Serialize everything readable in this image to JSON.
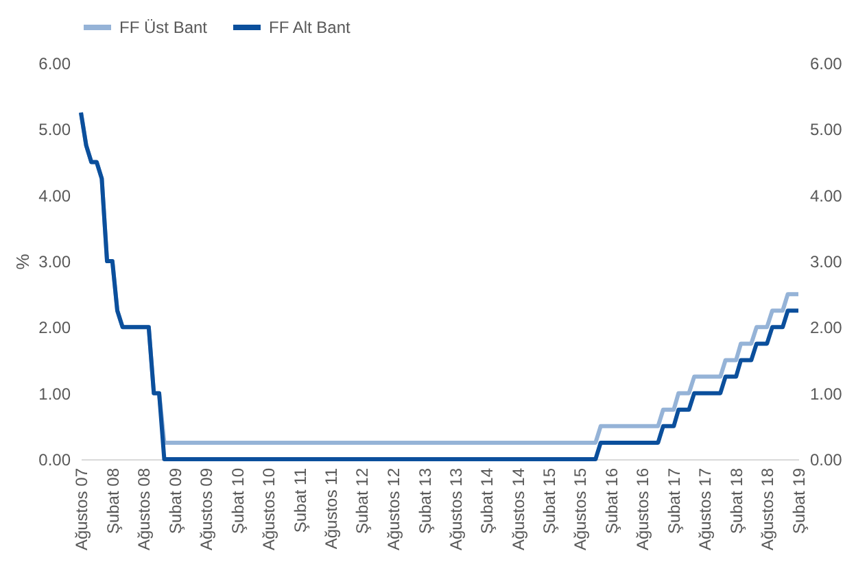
{
  "chart_data": {
    "type": "line",
    "ylabel": "%",
    "legend": "top",
    "grid": false,
    "xlim": [
      "2007-08",
      "2019-02"
    ],
    "xticks": [
      {
        "value": "2007-08",
        "label": "Ağustos 07"
      },
      {
        "value": "2008-02",
        "label": "Şubat 08"
      },
      {
        "value": "2008-08",
        "label": "Ağustos 08"
      },
      {
        "value": "2009-02",
        "label": "Şubat 09"
      },
      {
        "value": "2009-08",
        "label": "Ağustos 09"
      },
      {
        "value": "2010-02",
        "label": "Şubat 10"
      },
      {
        "value": "2010-08",
        "label": "Ağustos 10"
      },
      {
        "value": "2011-02",
        "label": "Şubat 11"
      },
      {
        "value": "2011-08",
        "label": "Ağustos 11"
      },
      {
        "value": "2012-02",
        "label": "Şubat 12"
      },
      {
        "value": "2012-08",
        "label": "Ağustos 12"
      },
      {
        "value": "2013-02",
        "label": "Şubat 13"
      },
      {
        "value": "2013-08",
        "label": "Ağustos 13"
      },
      {
        "value": "2014-02",
        "label": "Şubat 14"
      },
      {
        "value": "2014-08",
        "label": "Ağustos 14"
      },
      {
        "value": "2015-02",
        "label": "Şubat 15"
      },
      {
        "value": "2015-08",
        "label": "Ağustos 15"
      },
      {
        "value": "2016-02",
        "label": "Şubat 16"
      },
      {
        "value": "2016-08",
        "label": "Ağustos 16"
      },
      {
        "value": "2017-02",
        "label": "Şubat 17"
      },
      {
        "value": "2017-08",
        "label": "Ağustos 17"
      },
      {
        "value": "2018-02",
        "label": "Şubat 18"
      },
      {
        "value": "2018-08",
        "label": "Ağustos 18"
      },
      {
        "value": "2019-02",
        "label": "Şubat 19"
      }
    ],
    "ylim": [
      0,
      6
    ],
    "yticks": [
      {
        "value": 0,
        "label": "0.00"
      },
      {
        "value": 1,
        "label": "1.00"
      },
      {
        "value": 2,
        "label": "2.00"
      },
      {
        "value": 3,
        "label": "3.00"
      },
      {
        "value": 4,
        "label": "4.00"
      },
      {
        "value": 5,
        "label": "5.00"
      },
      {
        "value": 6,
        "label": "6.00"
      }
    ],
    "y2lim": [
      0,
      6
    ],
    "y2ticks": [
      {
        "value": 0,
        "label": "0.00"
      },
      {
        "value": 1,
        "label": "1.00"
      },
      {
        "value": 2,
        "label": "2.00"
      },
      {
        "value": 3,
        "label": "3.00"
      },
      {
        "value": 4,
        "label": "4.00"
      },
      {
        "value": 5,
        "label": "5.00"
      },
      {
        "value": 6,
        "label": "6.00"
      }
    ],
    "series": [
      {
        "name": "FF Üst Bant",
        "color": "#95b3d7",
        "x": [
          "2007-08",
          "2007-09",
          "2007-10",
          "2007-11",
          "2007-12",
          "2008-01",
          "2008-02",
          "2008-03",
          "2008-04",
          "2008-09",
          "2008-10",
          "2008-11",
          "2008-12",
          "2015-11",
          "2015-12",
          "2016-11",
          "2016-12",
          "2017-02",
          "2017-03",
          "2017-05",
          "2017-06",
          "2017-11",
          "2017-12",
          "2018-02",
          "2018-03",
          "2018-05",
          "2018-06",
          "2018-08",
          "2018-09",
          "2018-11",
          "2018-12",
          "2019-02"
        ],
        "values": [
          5.25,
          4.75,
          4.5,
          4.5,
          4.25,
          3.0,
          3.0,
          2.25,
          2.0,
          2.0,
          1.0,
          1.0,
          0.25,
          0.25,
          0.5,
          0.5,
          0.75,
          0.75,
          1.0,
          1.0,
          1.25,
          1.25,
          1.5,
          1.5,
          1.75,
          1.75,
          2.0,
          2.0,
          2.25,
          2.25,
          2.5,
          2.5
        ]
      },
      {
        "name": "FF Alt Bant",
        "color": "#0b4f9c",
        "x": [
          "2007-08",
          "2007-09",
          "2007-10",
          "2007-11",
          "2007-12",
          "2008-01",
          "2008-02",
          "2008-03",
          "2008-04",
          "2008-09",
          "2008-10",
          "2008-11",
          "2008-12",
          "2015-11",
          "2015-12",
          "2016-11",
          "2016-12",
          "2017-02",
          "2017-03",
          "2017-05",
          "2017-06",
          "2017-11",
          "2017-12",
          "2018-02",
          "2018-03",
          "2018-05",
          "2018-06",
          "2018-08",
          "2018-09",
          "2018-11",
          "2018-12",
          "2019-02"
        ],
        "values": [
          5.25,
          4.75,
          4.5,
          4.5,
          4.25,
          3.0,
          3.0,
          2.25,
          2.0,
          2.0,
          1.0,
          1.0,
          0.0,
          0.0,
          0.25,
          0.25,
          0.5,
          0.5,
          0.75,
          0.75,
          1.0,
          1.0,
          1.25,
          1.25,
          1.5,
          1.5,
          1.75,
          1.75,
          2.0,
          2.0,
          2.25,
          2.25
        ]
      }
    ]
  }
}
